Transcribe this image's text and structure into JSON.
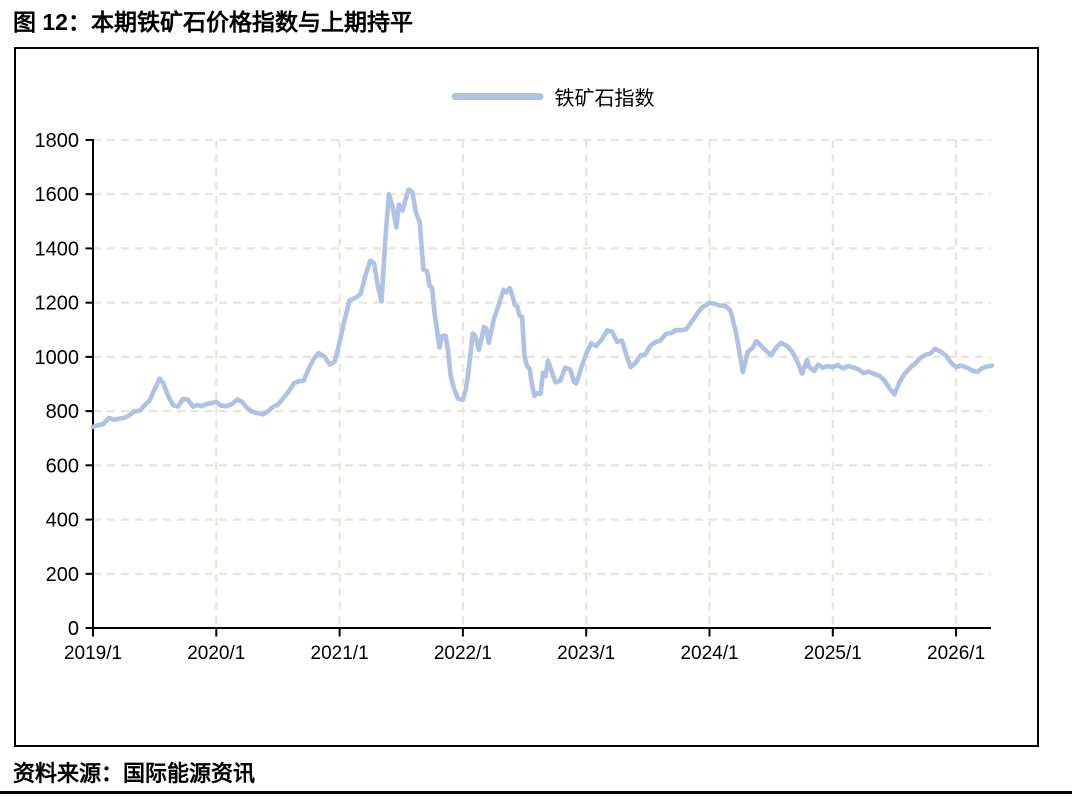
{
  "figure": {
    "title": "图 12：本期铁矿石价格指数与上期持平",
    "source": "资料来源：国际能源资讯"
  },
  "chart_data": {
    "type": "line",
    "title": "图 12：本期铁矿石价格指数与上期持平",
    "xlabel": "",
    "ylabel": "",
    "legend_position": "top-center",
    "legend": [
      {
        "name": "铁矿石指数",
        "color": "#afc2e5"
      }
    ],
    "x_ticks": [
      "2019/1",
      "2020/1",
      "2021/1",
      "2022/1",
      "2023/1",
      "2024/1",
      "2025/1",
      "2026/1"
    ],
    "y_ticks": [
      0,
      200,
      400,
      600,
      800,
      1000,
      1200,
      1400,
      1600,
      1800
    ],
    "ylim": [
      0,
      1800
    ],
    "xlim_years": [
      2019.0,
      2026.38
    ],
    "grid": "dashed",
    "grid_color": "#e9e5d8",
    "axis_color": "#000000",
    "series": [
      {
        "name": "铁矿石指数",
        "color": "#afc2e5",
        "points": [
          [
            2019.0,
            742
          ],
          [
            2019.04,
            748
          ],
          [
            2019.08,
            752
          ],
          [
            2019.13,
            775
          ],
          [
            2019.17,
            768
          ],
          [
            2019.21,
            772
          ],
          [
            2019.25,
            775
          ],
          [
            2019.29,
            783
          ],
          [
            2019.33,
            798
          ],
          [
            2019.38,
            802
          ],
          [
            2019.42,
            822
          ],
          [
            2019.46,
            840
          ],
          [
            2019.5,
            882
          ],
          [
            2019.54,
            920
          ],
          [
            2019.57,
            903
          ],
          [
            2019.61,
            855
          ],
          [
            2019.65,
            822
          ],
          [
            2019.69,
            817
          ],
          [
            2019.73,
            845
          ],
          [
            2019.77,
            842
          ],
          [
            2019.81,
            817
          ],
          [
            2019.85,
            822
          ],
          [
            2019.88,
            818
          ],
          [
            2019.92,
            826
          ],
          [
            2019.96,
            830
          ],
          [
            2020.0,
            834
          ],
          [
            2020.04,
            820
          ],
          [
            2020.08,
            818
          ],
          [
            2020.13,
            827
          ],
          [
            2020.17,
            843
          ],
          [
            2020.21,
            834
          ],
          [
            2020.25,
            812
          ],
          [
            2020.29,
            798
          ],
          [
            2020.33,
            793
          ],
          [
            2020.38,
            788
          ],
          [
            2020.42,
            800
          ],
          [
            2020.46,
            816
          ],
          [
            2020.5,
            824
          ],
          [
            2020.54,
            846
          ],
          [
            2020.58,
            868
          ],
          [
            2020.63,
            903
          ],
          [
            2020.67,
            910
          ],
          [
            2020.71,
            913
          ],
          [
            2020.75,
            958
          ],
          [
            2020.79,
            992
          ],
          [
            2020.83,
            1014
          ],
          [
            2020.88,
            1000
          ],
          [
            2020.92,
            972
          ],
          [
            2020.96,
            982
          ],
          [
            2021.0,
            1055
          ],
          [
            2021.04,
            1135
          ],
          [
            2021.08,
            1208
          ],
          [
            2021.13,
            1218
          ],
          [
            2021.17,
            1232
          ],
          [
            2021.21,
            1302
          ],
          [
            2021.25,
            1355
          ],
          [
            2021.28,
            1345
          ],
          [
            2021.31,
            1262
          ],
          [
            2021.34,
            1205
          ],
          [
            2021.37,
            1430
          ],
          [
            2021.4,
            1600
          ],
          [
            2021.43,
            1555
          ],
          [
            2021.46,
            1478
          ],
          [
            2021.48,
            1562
          ],
          [
            2021.51,
            1540
          ],
          [
            2021.54,
            1588
          ],
          [
            2021.56,
            1617
          ],
          [
            2021.59,
            1608
          ],
          [
            2021.62,
            1532
          ],
          [
            2021.65,
            1498
          ],
          [
            2021.68,
            1322
          ],
          [
            2021.71,
            1316
          ],
          [
            2021.73,
            1262
          ],
          [
            2021.75,
            1256
          ],
          [
            2021.77,
            1162
          ],
          [
            2021.79,
            1100
          ],
          [
            2021.81,
            1035
          ],
          [
            2021.83,
            1076
          ],
          [
            2021.86,
            1078
          ],
          [
            2021.88,
            1020
          ],
          [
            2021.9,
            930
          ],
          [
            2021.93,
            880
          ],
          [
            2021.96,
            846
          ],
          [
            2022.0,
            842
          ],
          [
            2022.02,
            872
          ],
          [
            2022.04,
            928
          ],
          [
            2022.08,
            1086
          ],
          [
            2022.1,
            1078
          ],
          [
            2022.13,
            1026
          ],
          [
            2022.17,
            1110
          ],
          [
            2022.19,
            1104
          ],
          [
            2022.21,
            1052
          ],
          [
            2022.25,
            1136
          ],
          [
            2022.29,
            1192
          ],
          [
            2022.33,
            1248
          ],
          [
            2022.35,
            1238
          ],
          [
            2022.38,
            1254
          ],
          [
            2022.4,
            1228
          ],
          [
            2022.42,
            1192
          ],
          [
            2022.44,
            1186
          ],
          [
            2022.46,
            1152
          ],
          [
            2022.48,
            1148
          ],
          [
            2022.5,
            1002
          ],
          [
            2022.52,
            966
          ],
          [
            2022.54,
            958
          ],
          [
            2022.56,
            900
          ],
          [
            2022.58,
            856
          ],
          [
            2022.6,
            866
          ],
          [
            2022.63,
            864
          ],
          [
            2022.65,
            942
          ],
          [
            2022.67,
            930
          ],
          [
            2022.69,
            986
          ],
          [
            2022.71,
            960
          ],
          [
            2022.75,
            906
          ],
          [
            2022.79,
            912
          ],
          [
            2022.83,
            960
          ],
          [
            2022.87,
            954
          ],
          [
            2022.9,
            908
          ],
          [
            2022.92,
            902
          ],
          [
            2022.96,
            960
          ],
          [
            2023.0,
            1012
          ],
          [
            2023.04,
            1050
          ],
          [
            2023.08,
            1040
          ],
          [
            2023.13,
            1066
          ],
          [
            2023.17,
            1098
          ],
          [
            2023.21,
            1092
          ],
          [
            2023.25,
            1056
          ],
          [
            2023.29,
            1060
          ],
          [
            2023.33,
            1000
          ],
          [
            2023.36,
            962
          ],
          [
            2023.4,
            978
          ],
          [
            2023.44,
            1006
          ],
          [
            2023.48,
            1010
          ],
          [
            2023.52,
            1040
          ],
          [
            2023.56,
            1054
          ],
          [
            2023.6,
            1060
          ],
          [
            2023.65,
            1086
          ],
          [
            2023.69,
            1088
          ],
          [
            2023.73,
            1100
          ],
          [
            2023.77,
            1098
          ],
          [
            2023.81,
            1102
          ],
          [
            2023.85,
            1126
          ],
          [
            2023.9,
            1160
          ],
          [
            2023.94,
            1182
          ],
          [
            2024.0,
            1200
          ],
          [
            2024.04,
            1196
          ],
          [
            2024.08,
            1190
          ],
          [
            2024.13,
            1188
          ],
          [
            2024.17,
            1170
          ],
          [
            2024.21,
            1100
          ],
          [
            2024.25,
            1000
          ],
          [
            2024.27,
            944
          ],
          [
            2024.31,
            1018
          ],
          [
            2024.35,
            1034
          ],
          [
            2024.38,
            1058
          ],
          [
            2024.42,
            1040
          ],
          [
            2024.46,
            1022
          ],
          [
            2024.5,
            1006
          ],
          [
            2024.54,
            1034
          ],
          [
            2024.58,
            1052
          ],
          [
            2024.63,
            1040
          ],
          [
            2024.67,
            1020
          ],
          [
            2024.71,
            986
          ],
          [
            2024.75,
            938
          ],
          [
            2024.79,
            988
          ],
          [
            2024.81,
            962
          ],
          [
            2024.85,
            948
          ],
          [
            2024.88,
            972
          ],
          [
            2024.92,
            960
          ],
          [
            2024.96,
            966
          ],
          [
            2025.0,
            962
          ],
          [
            2025.04,
            970
          ],
          [
            2025.08,
            958
          ],
          [
            2025.13,
            966
          ],
          [
            2025.17,
            960
          ],
          [
            2025.21,
            954
          ],
          [
            2025.25,
            940
          ],
          [
            2025.29,
            946
          ],
          [
            2025.33,
            938
          ],
          [
            2025.38,
            930
          ],
          [
            2025.42,
            912
          ],
          [
            2025.46,
            884
          ],
          [
            2025.5,
            862
          ],
          [
            2025.54,
            906
          ],
          [
            2025.58,
            936
          ],
          [
            2025.63,
            962
          ],
          [
            2025.67,
            976
          ],
          [
            2025.71,
            996
          ],
          [
            2025.75,
            1008
          ],
          [
            2025.79,
            1012
          ],
          [
            2025.83,
            1030
          ],
          [
            2025.88,
            1018
          ],
          [
            2025.92,
            1004
          ],
          [
            2025.96,
            978
          ],
          [
            2026.0,
            962
          ],
          [
            2026.04,
            968
          ],
          [
            2026.08,
            962
          ],
          [
            2026.13,
            950
          ],
          [
            2026.17,
            944
          ],
          [
            2026.21,
            958
          ],
          [
            2026.25,
            964
          ],
          [
            2026.29,
            968
          ]
        ]
      }
    ]
  }
}
